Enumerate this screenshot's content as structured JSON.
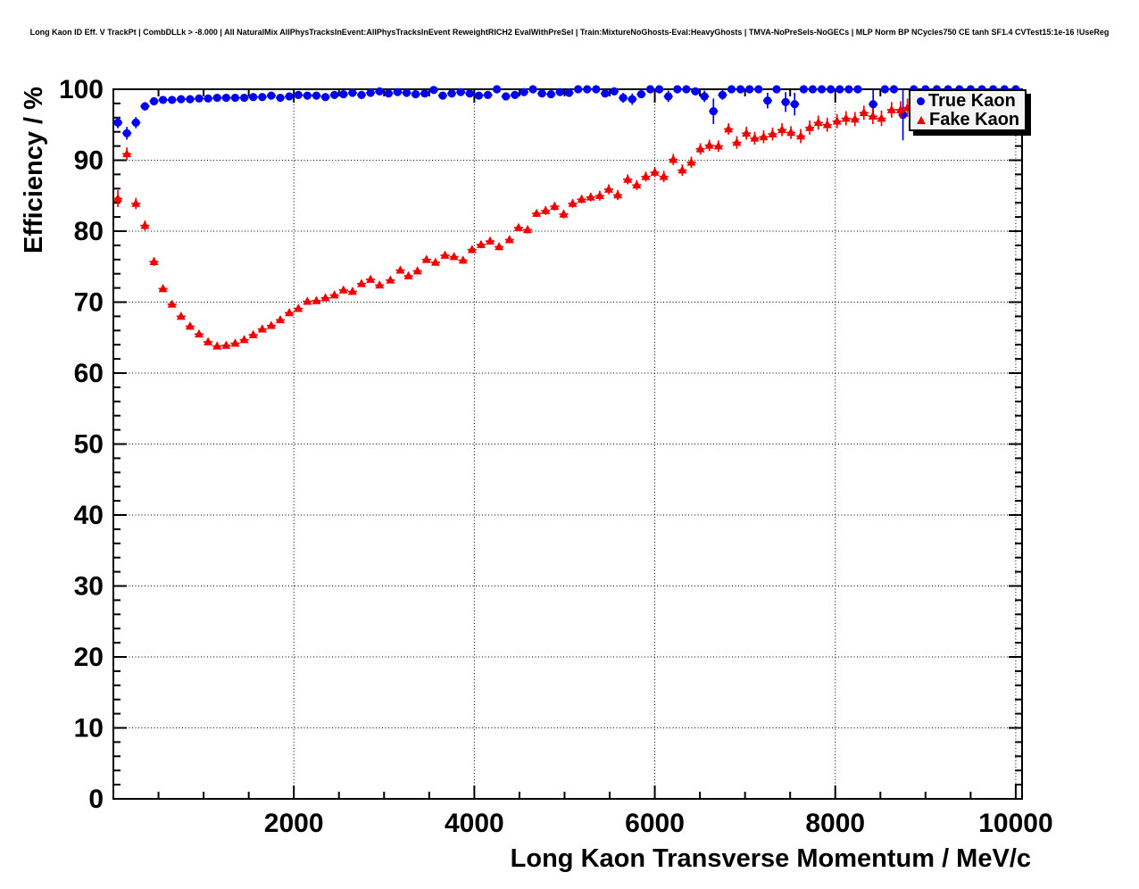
{
  "title": "Long Kaon ID Eff. V TrackPt | CombDLLk > -8.000 | All NaturalMix AllPhysTracksInEvent:AllPhysTracksInEvent ReweightRICH2 EvalWithPreSel | Train:MixtureNoGhosts-Eval:HeavyGhosts | TMVA-NoPreSels-NoGECs | MLP Norm BP NCycles750 CE tanh SF1.4 CVTest15:1e-16 !UseReg",
  "legend": {
    "position": "top-right",
    "entries": [
      {
        "label": "True Kaon",
        "marker": "circle",
        "color": "#0000f0"
      },
      {
        "label": "Fake Kaon",
        "marker": "triangle",
        "color": "#f00000"
      }
    ]
  },
  "colors": {
    "true_kaon": "#0000f0",
    "fake_kaon": "#f00000",
    "axis": "#000000",
    "grid": "#000000",
    "legend_bg": "#f4f4f4"
  },
  "chart_data": {
    "type": "scatter",
    "title": "Long Kaon ID Eff. V TrackPt",
    "xlabel": "Long Kaon Transverse Momentum / MeV/c",
    "ylabel": "Efficiency / %",
    "xlim": [
      0,
      10070
    ],
    "ylim": [
      0,
      100
    ],
    "x_major_ticks": [
      2000,
      4000,
      6000,
      8000,
      10000
    ],
    "x_tick_labels": [
      "2000",
      "4000",
      "6000",
      "8000",
      "10000"
    ],
    "x_minor_step": 500,
    "y_major_ticks": [
      0,
      10,
      20,
      30,
      40,
      50,
      60,
      70,
      80,
      90,
      100
    ],
    "y_tick_labels": [
      "0",
      "10",
      "20",
      "30",
      "40",
      "50",
      "60",
      "70",
      "80",
      "90",
      "100"
    ],
    "y_minor_step": 2,
    "grid": "dotted",
    "legend_position": "top-right",
    "x_bin_halfwidth": 50,
    "series": [
      {
        "name": "True Kaon",
        "marker": "circle",
        "color": "#0000f0",
        "points": [
          [
            50,
            95.3,
            0.8
          ],
          [
            150,
            93.8,
            0.9
          ],
          [
            250,
            95.3,
            0.8
          ],
          [
            350,
            97.6,
            0.6
          ],
          [
            450,
            98.3,
            0.4
          ],
          [
            550,
            98.5,
            0.3
          ],
          [
            650,
            98.5,
            0.3
          ],
          [
            750,
            98.6,
            0.3
          ],
          [
            850,
            98.6,
            0.2
          ],
          [
            950,
            98.7,
            0.2
          ],
          [
            1050,
            98.7,
            0.2
          ],
          [
            1150,
            98.8,
            0.2
          ],
          [
            1250,
            98.8,
            0.2
          ],
          [
            1350,
            98.8,
            0.2
          ],
          [
            1450,
            98.8,
            0.2
          ],
          [
            1550,
            98.9,
            0.2
          ],
          [
            1650,
            98.9,
            0.2
          ],
          [
            1750,
            99.1,
            0.2
          ],
          [
            1850,
            98.8,
            0.2
          ],
          [
            1950,
            99.0,
            0.2
          ],
          [
            2050,
            99.2,
            0.2
          ],
          [
            2150,
            99.1,
            0.2
          ],
          [
            2250,
            99.1,
            0.2
          ],
          [
            2350,
            98.9,
            0.3
          ],
          [
            2450,
            99.2,
            0.2
          ],
          [
            2550,
            99.3,
            0.2
          ],
          [
            2650,
            99.5,
            0.2
          ],
          [
            2750,
            99.2,
            0.2
          ],
          [
            2850,
            99.5,
            0.2
          ],
          [
            2950,
            99.7,
            0.2
          ],
          [
            3050,
            99.4,
            0.2
          ],
          [
            3150,
            99.6,
            0.2
          ],
          [
            3250,
            99.5,
            0.2
          ],
          [
            3350,
            99.3,
            0.3
          ],
          [
            3450,
            99.4,
            0.3
          ],
          [
            3550,
            99.9,
            0.1
          ],
          [
            3650,
            99.1,
            0.3
          ],
          [
            3750,
            99.4,
            0.3
          ],
          [
            3850,
            99.6,
            0.2
          ],
          [
            3950,
            99.4,
            0.3
          ],
          [
            4050,
            99.1,
            0.3
          ],
          [
            4150,
            99.2,
            0.3
          ],
          [
            4250,
            100.0,
            0.1
          ],
          [
            4350,
            99.0,
            0.4
          ],
          [
            4450,
            99.2,
            0.4
          ],
          [
            4550,
            99.6,
            0.3
          ],
          [
            4650,
            100.0,
            0.1
          ],
          [
            4750,
            99.4,
            0.3
          ],
          [
            4850,
            99.3,
            0.4
          ],
          [
            4950,
            99.6,
            0.3
          ],
          [
            5050,
            99.5,
            0.3
          ],
          [
            5150,
            100.0,
            0.1
          ],
          [
            5250,
            100.0,
            0.1
          ],
          [
            5350,
            100.0,
            0.2
          ],
          [
            5450,
            99.4,
            0.4
          ],
          [
            5550,
            99.7,
            0.3
          ],
          [
            5650,
            98.8,
            0.7
          ],
          [
            5750,
            98.6,
            0.8
          ],
          [
            5850,
            99.3,
            0.5
          ],
          [
            5950,
            100.0,
            0.2
          ],
          [
            6050,
            100.0,
            0.3
          ],
          [
            6150,
            99.0,
            0.8
          ],
          [
            6250,
            100.0,
            0.2
          ],
          [
            6350,
            100.0,
            0.2
          ],
          [
            6450,
            99.7,
            0.4
          ],
          [
            6550,
            99.0,
            0.8
          ],
          [
            6650,
            96.9,
            1.8
          ],
          [
            6750,
            99.2,
            0.7
          ],
          [
            6850,
            100.0,
            0.3
          ],
          [
            6950,
            100.0,
            0.3
          ],
          [
            7050,
            100.0,
            0.3
          ],
          [
            7150,
            100.0,
            0.3
          ],
          [
            7250,
            98.4,
            1.1
          ],
          [
            7350,
            100.0,
            0.3
          ],
          [
            7450,
            98.2,
            1.4
          ],
          [
            7550,
            97.9,
            1.6
          ],
          [
            7650,
            100.0,
            0.3
          ],
          [
            7750,
            100.0,
            0.3
          ],
          [
            7850,
            100.0,
            0.3
          ],
          [
            7950,
            100.0,
            0.3
          ],
          [
            8050,
            100.0,
            0.4
          ],
          [
            8150,
            100.0,
            0.4
          ],
          [
            8250,
            100.0,
            0.4
          ],
          [
            8420,
            97.9,
            2.0
          ],
          [
            8550,
            100.0,
            0.4
          ],
          [
            8650,
            100.0,
            0.4
          ],
          [
            8750,
            96.4,
            3.6
          ],
          [
            8870,
            100.0,
            0.4
          ],
          [
            9000,
            100.0,
            0.4
          ],
          [
            9125,
            100.0,
            0.4
          ],
          [
            9250,
            100.0,
            0.5
          ],
          [
            9375,
            100.0,
            0.5
          ],
          [
            9500,
            100.0,
            0.5
          ],
          [
            9625,
            100.0,
            0.5
          ],
          [
            9750,
            100.0,
            0.5
          ],
          [
            9875,
            100.0,
            0.5
          ],
          [
            10000,
            100.0,
            0.5
          ]
        ]
      },
      {
        "name": "Fake Kaon",
        "marker": "triangle",
        "color": "#f00000",
        "points": [
          [
            50,
            84.6,
            1.2
          ],
          [
            150,
            90.9,
            0.9
          ],
          [
            250,
            83.9,
            0.8
          ],
          [
            350,
            80.8,
            0.7
          ],
          [
            450,
            75.7,
            0.6
          ],
          [
            550,
            71.9,
            0.5
          ],
          [
            650,
            69.7,
            0.4
          ],
          [
            750,
            68.0,
            0.4
          ],
          [
            850,
            66.6,
            0.4
          ],
          [
            950,
            65.5,
            0.3
          ],
          [
            1050,
            64.4,
            0.3
          ],
          [
            1150,
            63.8,
            0.3
          ],
          [
            1250,
            63.9,
            0.3
          ],
          [
            1350,
            64.2,
            0.3
          ],
          [
            1450,
            64.7,
            0.3
          ],
          [
            1550,
            65.4,
            0.3
          ],
          [
            1650,
            66.2,
            0.3
          ],
          [
            1750,
            66.7,
            0.3
          ],
          [
            1850,
            67.5,
            0.3
          ],
          [
            1950,
            68.5,
            0.3
          ],
          [
            2050,
            69.1,
            0.3
          ],
          [
            2150,
            70.1,
            0.3
          ],
          [
            2250,
            70.2,
            0.3
          ],
          [
            2350,
            70.6,
            0.3
          ],
          [
            2450,
            71.0,
            0.3
          ],
          [
            2550,
            71.7,
            0.3
          ],
          [
            2650,
            71.5,
            0.3
          ],
          [
            2750,
            72.6,
            0.3
          ],
          [
            2850,
            73.2,
            0.4
          ],
          [
            2950,
            72.4,
            0.4
          ],
          [
            3070,
            73.1,
            0.4
          ],
          [
            3180,
            74.5,
            0.4
          ],
          [
            3270,
            73.7,
            0.4
          ],
          [
            3370,
            74.4,
            0.4
          ],
          [
            3470,
            76.0,
            0.4
          ],
          [
            3570,
            75.6,
            0.4
          ],
          [
            3675,
            76.6,
            0.4
          ],
          [
            3775,
            76.4,
            0.4
          ],
          [
            3875,
            75.9,
            0.5
          ],
          [
            3975,
            77.4,
            0.5
          ],
          [
            4075,
            78.1,
            0.5
          ],
          [
            4175,
            78.6,
            0.5
          ],
          [
            4275,
            77.8,
            0.5
          ],
          [
            4390,
            78.8,
            0.5
          ],
          [
            4490,
            80.5,
            0.5
          ],
          [
            4590,
            80.2,
            0.5
          ],
          [
            4690,
            82.5,
            0.5
          ],
          [
            4790,
            82.9,
            0.6
          ],
          [
            4890,
            83.5,
            0.6
          ],
          [
            4990,
            82.4,
            0.6
          ],
          [
            5090,
            83.9,
            0.6
          ],
          [
            5190,
            84.5,
            0.6
          ],
          [
            5290,
            84.8,
            0.6
          ],
          [
            5390,
            85.0,
            0.7
          ],
          [
            5490,
            85.9,
            0.7
          ],
          [
            5590,
            85.1,
            0.7
          ],
          [
            5700,
            87.3,
            0.7
          ],
          [
            5800,
            86.5,
            0.7
          ],
          [
            5900,
            87.7,
            0.7
          ],
          [
            6000,
            88.3,
            0.7
          ],
          [
            6100,
            87.7,
            0.8
          ],
          [
            6205,
            90.1,
            0.8
          ],
          [
            6305,
            88.6,
            0.8
          ],
          [
            6405,
            89.7,
            0.8
          ],
          [
            6505,
            91.6,
            0.8
          ],
          [
            6605,
            92.1,
            0.8
          ],
          [
            6705,
            92.0,
            0.8
          ],
          [
            6817,
            94.4,
            0.8
          ],
          [
            6909,
            92.5,
            0.9
          ],
          [
            7015,
            93.8,
            0.9
          ],
          [
            7107,
            93.1,
            0.9
          ],
          [
            7206,
            93.3,
            0.9
          ],
          [
            7305,
            93.7,
            0.9
          ],
          [
            7410,
            94.3,
            0.9
          ],
          [
            7509,
            93.9,
            0.9
          ],
          [
            7618,
            93.4,
            1.0
          ],
          [
            7717,
            94.6,
            1.0
          ],
          [
            7812,
            95.3,
            1.0
          ],
          [
            7911,
            95.0,
            1.0
          ],
          [
            8020,
            95.5,
            1.0
          ],
          [
            8119,
            95.9,
            1.0
          ],
          [
            8218,
            95.8,
            1.0
          ],
          [
            8317,
            96.7,
            1.0
          ],
          [
            8416,
            96.2,
            1.1
          ],
          [
            8512,
            95.9,
            1.1
          ],
          [
            8624,
            97.1,
            1.1
          ],
          [
            8723,
            97.1,
            1.2
          ],
          [
            8800,
            97.4,
            1.3
          ]
        ]
      }
    ]
  }
}
